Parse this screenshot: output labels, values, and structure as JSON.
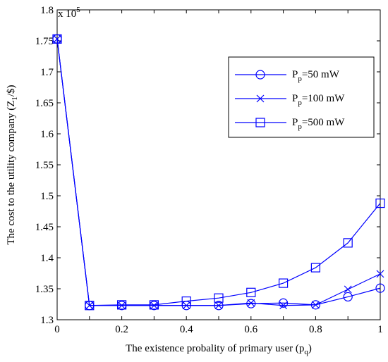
{
  "chart_data": {
    "type": "line",
    "title": "",
    "exponent_label": "x 10",
    "exponent_power": "5",
    "xlabel": "The existence probality of primary user (p",
    "xlabel_sub": "q",
    "xlabel_end": ")",
    "ylabel": "The cost to the utility company (Z",
    "ylabel_sub": "1",
    "ylabel_end": "/$)",
    "xlim": [
      0,
      1
    ],
    "ylim": [
      1.3,
      1.8
    ],
    "x_ticks": [
      0,
      0.1,
      0.2,
      0.3,
      0.4,
      0.5,
      0.6,
      0.7,
      0.8,
      0.9,
      1
    ],
    "x_tick_labels": [
      "0",
      "",
      "0.2",
      "",
      "0.4",
      "",
      "0.6",
      "",
      "0.8",
      "",
      "1"
    ],
    "y_ticks": [
      1.3,
      1.35,
      1.4,
      1.45,
      1.5,
      1.55,
      1.6,
      1.65,
      1.7,
      1.75,
      1.8
    ],
    "y_tick_labels": [
      "1.3",
      "1.35",
      "1.4",
      "1.45",
      "1.5",
      "1.55",
      "1.6",
      "1.65",
      "1.7",
      "1.75",
      "1.8"
    ],
    "grid": false,
    "legend_position": "top-right",
    "line_color": "#0000ff",
    "x": [
      0,
      0.1,
      0.2,
      0.3,
      0.4,
      0.5,
      0.6,
      0.7,
      0.8,
      0.9,
      1.0
    ],
    "series": [
      {
        "name_main": "P",
        "name_sub": "p",
        "name_rest": "=50 mW",
        "marker": "circle",
        "values": [
          1.753,
          1.323,
          1.323,
          1.323,
          1.323,
          1.323,
          1.326,
          1.327,
          1.324,
          1.337,
          1.351
        ]
      },
      {
        "name_main": "P",
        "name_sub": "p",
        "name_rest": "=100 mW",
        "marker": "x",
        "values": [
          1.753,
          1.323,
          1.323,
          1.323,
          1.323,
          1.323,
          1.327,
          1.323,
          1.324,
          1.349,
          1.374
        ]
      },
      {
        "name_main": "P",
        "name_sub": "p",
        "name_rest": "=500 mW",
        "marker": "square",
        "values": [
          1.753,
          1.323,
          1.324,
          1.324,
          1.33,
          1.335,
          1.344,
          1.359,
          1.384,
          1.424,
          1.488
        ]
      }
    ]
  }
}
